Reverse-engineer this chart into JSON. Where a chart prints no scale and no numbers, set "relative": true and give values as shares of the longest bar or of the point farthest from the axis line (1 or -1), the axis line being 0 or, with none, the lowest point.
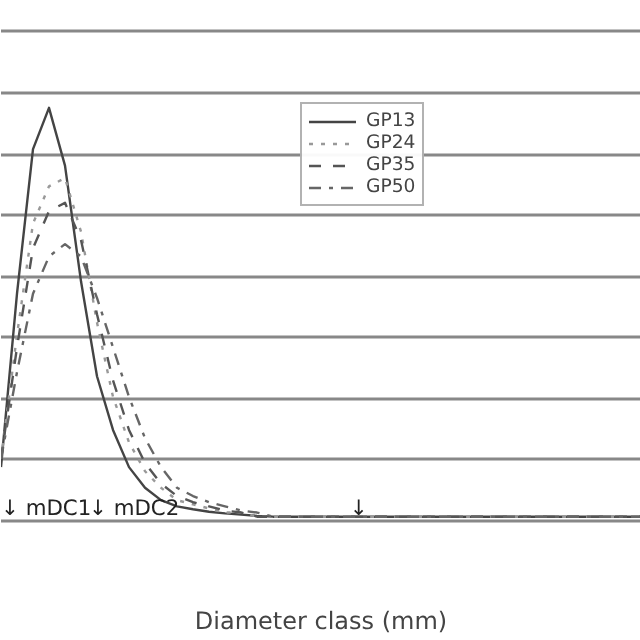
{
  "chart_data": {
    "type": "line",
    "relative": true,
    "xlabel": "Diameter class (mm)",
    "categories": [
      null,
      null,
      null,
      null,
      null,
      null,
      null,
      null,
      null,
      null,
      null,
      null,
      null,
      null,
      null,
      null,
      null,
      null,
      null,
      null,
      null,
      null,
      null,
      null,
      null,
      null,
      null,
      null,
      null,
      null,
      null,
      null,
      null,
      null,
      null,
      null,
      null,
      null,
      null,
      null,
      null
    ],
    "grid": "y",
    "legend": "top right",
    "series": [
      {
        "name": "GP13",
        "color": "#444444",
        "line_style": "solid",
        "values": [
          0.13,
          0.55,
          0.9,
          1,
          0.86,
          0.58,
          0.35,
          0.22,
          0.13,
          0.08,
          0.05,
          0.035,
          0.028,
          0.022,
          0.018,
          0.015,
          0.012,
          0.01,
          0.01,
          0.01,
          0.01,
          0.01,
          0.01,
          0.01,
          0.01,
          0.01,
          0.01,
          0.01,
          0.01,
          0.01,
          0.01,
          0.01,
          0.01,
          0.01,
          0.01,
          0.01,
          0.01,
          0.01,
          0.01,
          0.01,
          0.01
        ]
      },
      {
        "name": "GP24",
        "color": "#999999",
        "line_style": "dotted",
        "values": [
          0.15,
          0.45,
          0.72,
          0.81,
          0.83,
          0.7,
          0.48,
          0.3,
          0.19,
          0.12,
          0.08,
          0.05,
          0.04,
          0.03,
          0.02,
          0.02,
          0.01,
          0.01,
          0.01,
          0.01,
          0.01,
          0.01,
          0.01,
          0.01,
          0.01,
          0.01,
          0.01,
          0.01,
          0.01,
          0.01,
          0.01,
          0.01,
          0.01,
          0.01,
          0.01,
          0.01,
          0.01,
          0.01,
          0.01,
          0.01,
          0.01
        ]
      },
      {
        "name": "GP35",
        "color": "#555555",
        "line_style": "dashed",
        "values": [
          0.15,
          0.42,
          0.66,
          0.75,
          0.77,
          0.68,
          0.5,
          0.34,
          0.22,
          0.14,
          0.09,
          0.06,
          0.045,
          0.035,
          0.025,
          0.02,
          0.01,
          0.01,
          0.01,
          0.01,
          0.01,
          0.01,
          0.01,
          0.01,
          0.01,
          0.01,
          0.01,
          0.01,
          0.01,
          0.01,
          0.01,
          0.01,
          0.01,
          0.01,
          0.01,
          0.01,
          0.01,
          0.01,
          0.01,
          0.01,
          0.01
        ]
      },
      {
        "name": "GP50",
        "color": "#666666",
        "line_style": "dashdot",
        "values": [
          0.15,
          0.36,
          0.55,
          0.64,
          0.67,
          0.64,
          0.54,
          0.42,
          0.3,
          0.2,
          0.13,
          0.08,
          0.06,
          0.045,
          0.035,
          0.025,
          0.02,
          0.01,
          0.01,
          0.01,
          0.01,
          0.01,
          0.01,
          0.01,
          0.01,
          0.01,
          0.01,
          0.01,
          0.01,
          0.01,
          0.01,
          0.01,
          0.01,
          0.01,
          0.01,
          0.01,
          0.01,
          0.01,
          0.01,
          0.01,
          0.01
        ]
      }
    ],
    "annotations": [
      "↓ mDC1",
      "↓ mDC2",
      "↓"
    ]
  }
}
